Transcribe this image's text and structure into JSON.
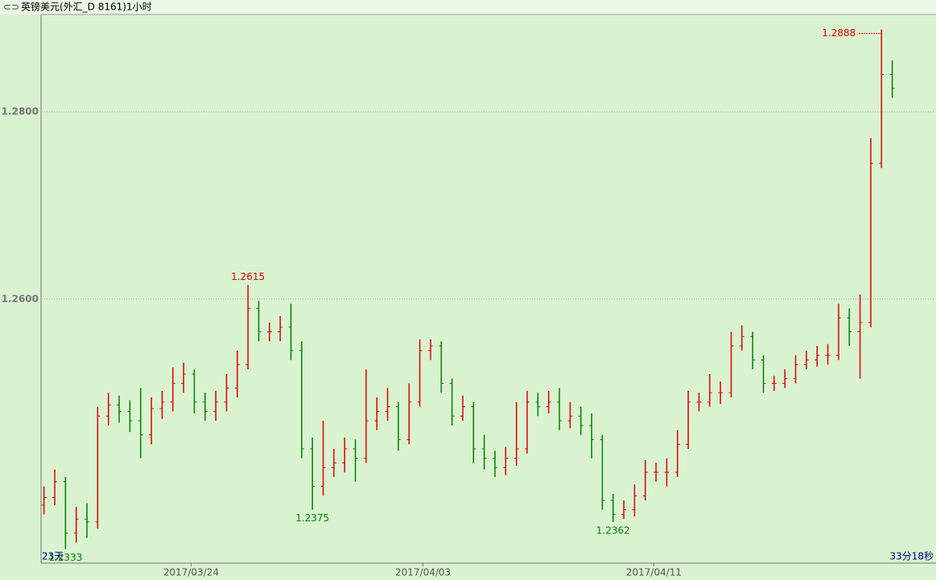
{
  "chart_data": {
    "type": "ohlc",
    "title": "英镑美元(外汇_D 8161)1小时",
    "left_note": "23天",
    "right_note": "33分18秒",
    "up_color": "#e00000",
    "down_color": "#008000",
    "ylim": [
      1.2318,
      1.2904
    ],
    "yticks": [
      {
        "value": 1.26,
        "label": "1.2600"
      },
      {
        "value": 1.28,
        "label": "1.2800"
      }
    ],
    "xlim": [
      -0.2,
      83
    ],
    "xticks": [
      {
        "value": 13.7,
        "label": "2017/03/24"
      },
      {
        "value": 35.3,
        "label": "2017/04/03"
      },
      {
        "value": 56.8,
        "label": "2017/04/11"
      }
    ],
    "grid": true,
    "max_labels": [
      1.2615,
      1.2888
    ],
    "min_labels": [
      1.2333,
      1.2375,
      1.2362
    ],
    "open": [
      1.238,
      1.2388,
      1.2405,
      1.235,
      1.2365,
      1.2362,
      1.2475,
      1.2487,
      1.248,
      1.247,
      1.2455,
      1.2483,
      1.249,
      1.251,
      1.252,
      1.249,
      1.248,
      1.249,
      1.2505,
      1.253,
      1.259,
      1.2565,
      1.2565,
      1.257,
      1.2545,
      1.244,
      1.24,
      1.242,
      1.2425,
      1.244,
      1.243,
      1.247,
      1.248,
      1.2485,
      1.245,
      1.249,
      1.2545,
      1.255,
      1.251,
      1.2475,
      1.2485,
      1.244,
      1.243,
      1.242,
      1.243,
      1.244,
      1.249,
      1.2485,
      1.249,
      1.247,
      1.2475,
      1.2465,
      1.245,
      1.2385,
      1.237,
      1.2375,
      1.239,
      1.2415,
      1.2415,
      1.2415,
      1.2445,
      1.249,
      1.249,
      1.25,
      1.25,
      1.255,
      1.256,
      1.2535,
      1.251,
      1.251,
      1.2515,
      1.253,
      1.2535,
      1.254,
      1.254,
      1.258,
      1.2565,
      1.2575,
      1.2745,
      1.284
    ],
    "high": [
      1.24,
      1.2418,
      1.241,
      1.2378,
      1.2382,
      1.2485,
      1.25,
      1.2497,
      1.2492,
      1.2505,
      1.2495,
      1.2502,
      1.2527,
      1.2532,
      1.2525,
      1.25,
      1.2502,
      1.252,
      1.2545,
      1.2615,
      1.2598,
      1.2575,
      1.2582,
      1.2595,
      1.2555,
      1.2452,
      1.247,
      1.244,
      1.2452,
      1.245,
      1.2525,
      1.2495,
      1.2505,
      1.249,
      1.251,
      1.2557,
      1.2557,
      1.2555,
      1.2515,
      1.2497,
      1.249,
      1.2455,
      1.2438,
      1.2442,
      1.249,
      1.2502,
      1.25,
      1.2502,
      1.2505,
      1.249,
      1.2485,
      1.2478,
      1.2455,
      1.2392,
      1.2385,
      1.2402,
      1.2428,
      1.2425,
      1.243,
      1.246,
      1.2502,
      1.25,
      1.252,
      1.2512,
      1.2565,
      1.2572,
      1.2565,
      1.254,
      1.2518,
      1.2525,
      1.254,
      1.2545,
      1.255,
      1.2552,
      1.2595,
      1.259,
      1.2605,
      1.2772,
      1.2888,
      1.2855
    ],
    "low": [
      1.237,
      1.238,
      1.2333,
      1.234,
      1.2345,
      1.2355,
      1.2465,
      1.2468,
      1.2458,
      1.243,
      1.2445,
      1.2472,
      1.248,
      1.25,
      1.2478,
      1.247,
      1.247,
      1.248,
      1.2495,
      1.2525,
      1.2555,
      1.2555,
      1.2555,
      1.2535,
      1.243,
      1.2375,
      1.239,
      1.241,
      1.2415,
      1.2405,
      1.2425,
      1.246,
      1.247,
      1.2438,
      1.2445,
      1.2485,
      1.2535,
      1.25,
      1.2465,
      1.247,
      1.2425,
      1.2418,
      1.241,
      1.2412,
      1.2422,
      1.2435,
      1.2475,
      1.2478,
      1.246,
      1.2462,
      1.2455,
      1.243,
      1.2375,
      1.2362,
      1.2365,
      1.2368,
      1.2385,
      1.2405,
      1.24,
      1.241,
      1.244,
      1.248,
      1.2485,
      1.2488,
      1.2495,
      1.2545,
      1.2525,
      1.25,
      1.2502,
      1.2505,
      1.251,
      1.2525,
      1.2528,
      1.253,
      1.2535,
      1.255,
      1.2515,
      1.257,
      1.274,
      1.2815
    ],
    "close": [
      1.2388,
      1.2405,
      1.235,
      1.2365,
      1.2362,
      1.2475,
      1.2487,
      1.248,
      1.247,
      1.2455,
      1.2483,
      1.249,
      1.251,
      1.252,
      1.249,
      1.248,
      1.249,
      1.2505,
      1.253,
      1.259,
      1.2565,
      1.2565,
      1.257,
      1.2545,
      1.244,
      1.24,
      1.242,
      1.2425,
      1.244,
      1.243,
      1.247,
      1.248,
      1.2485,
      1.245,
      1.249,
      1.2545,
      1.255,
      1.251,
      1.2475,
      1.2485,
      1.244,
      1.243,
      1.242,
      1.243,
      1.244,
      1.249,
      1.2485,
      1.249,
      1.247,
      1.2475,
      1.2465,
      1.245,
      1.2385,
      1.237,
      1.2375,
      1.239,
      1.2415,
      1.2415,
      1.2415,
      1.2445,
      1.249,
      1.249,
      1.25,
      1.25,
      1.255,
      1.256,
      1.2535,
      1.251,
      1.251,
      1.2515,
      1.253,
      1.2535,
      1.254,
      1.254,
      1.258,
      1.2565,
      1.2575,
      1.2745,
      1.284,
      1.2825
    ]
  }
}
